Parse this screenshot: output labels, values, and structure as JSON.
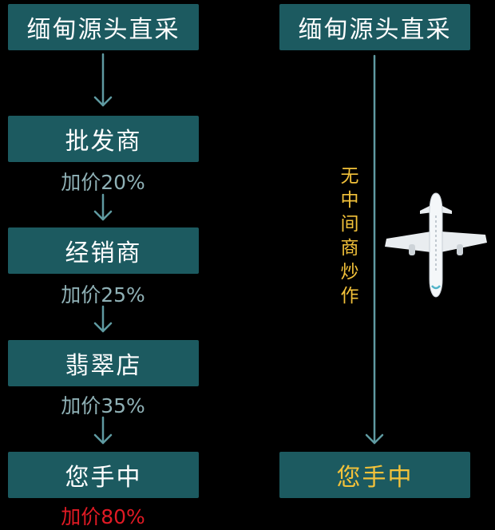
{
  "left_chain": {
    "steps": [
      {
        "label": "缅甸源头直采"
      },
      {
        "label": "批发商"
      },
      {
        "label": "经销商"
      },
      {
        "label": "翡翠店"
      },
      {
        "label": "您手中"
      }
    ],
    "markups": [
      "加价20%",
      "加价25%",
      "加价35%",
      "加价80%"
    ]
  },
  "right_chain": {
    "source": "缅甸源头直采",
    "destination": "您手中",
    "middle_text": [
      "无",
      "中",
      "间",
      "商",
      "炒",
      "作"
    ]
  },
  "colors": {
    "box_bg": "#1c5a60",
    "arrow": "#5f9aa1",
    "markup_text": "#8fb1b6",
    "total_markup": "#e01a24",
    "highlight": "#f3c23a"
  },
  "icons": {
    "plane": "airplane-icon"
  }
}
